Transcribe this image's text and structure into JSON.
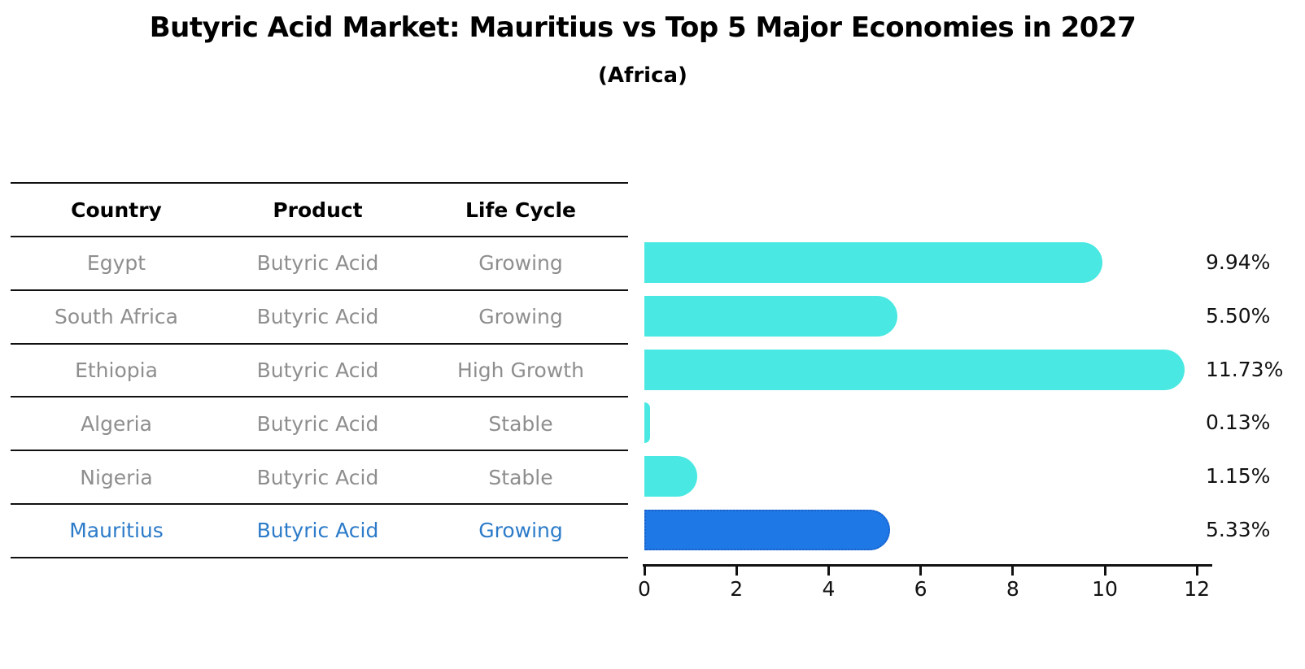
{
  "header": {
    "title": "Butyric Acid Market: Mauritius vs Top 5 Major Economies in 2027",
    "subtitle": "(Africa)"
  },
  "table": {
    "columns": [
      "Country",
      "Product",
      "Life Cycle"
    ],
    "rows": [
      {
        "country": "Egypt",
        "product": "Butyric Acid",
        "life_cycle": "Growing",
        "highlighted": false
      },
      {
        "country": "South Africa",
        "product": "Butyric Acid",
        "life_cycle": "Growing",
        "highlighted": false
      },
      {
        "country": "Ethiopia",
        "product": "Butyric Acid",
        "life_cycle": "High Growth",
        "highlighted": false
      },
      {
        "country": "Algeria",
        "product": "Butyric Acid",
        "life_cycle": "Stable",
        "highlighted": false
      },
      {
        "country": "Nigeria",
        "product": "Butyric Acid",
        "life_cycle": "Stable",
        "highlighted": false
      },
      {
        "country": "Mauritius",
        "product": "Butyric Acid",
        "life_cycle": "Growing",
        "highlighted": true
      }
    ]
  },
  "chart_data": {
    "type": "bar",
    "orientation": "horizontal",
    "title": "Butyric Acid Market: Mauritius vs Top 5 Major Economies in 2027",
    "subtitle": "(Africa)",
    "categories": [
      "Egypt",
      "South Africa",
      "Ethiopia",
      "Algeria",
      "Nigeria",
      "Mauritius"
    ],
    "values": [
      9.94,
      5.5,
      11.73,
      0.13,
      1.15,
      5.33
    ],
    "value_labels": [
      "9.94%",
      "5.50%",
      "11.73%",
      "0.13%",
      "1.15%",
      "5.33%"
    ],
    "xlim": [
      0,
      12.32
    ],
    "xticks": [
      0,
      2,
      4,
      6,
      8,
      10,
      12
    ],
    "grid": false,
    "legend": "none",
    "bar_color": "#4ae8e2",
    "highlight_bar_color": "#1e78e6",
    "highlight_border_color": "#1a5fc8",
    "highlight_index": 5
  },
  "colors": {
    "title_text": "#000000",
    "muted_text": "#8e8e8e",
    "highlight_text": "#2c7bc9",
    "line": "#111111",
    "background": "#ffffff"
  }
}
